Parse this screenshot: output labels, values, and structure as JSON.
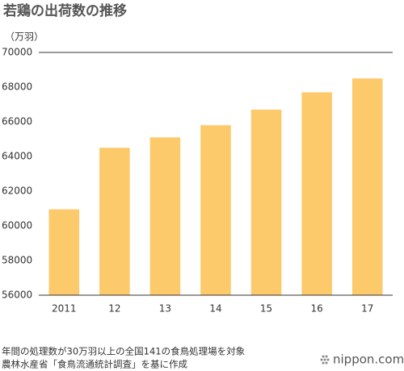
{
  "chart_data": {
    "type": "bar",
    "title": "若鶏の出荷数の推移",
    "unit_label": "（万羽）",
    "categories": [
      "2011",
      "12",
      "13",
      "14",
      "15",
      "16",
      "17"
    ],
    "values": [
      60950,
      64500,
      65100,
      65800,
      66700,
      67700,
      68500
    ],
    "color": "#fcc96b",
    "ylim": [
      56000,
      70000
    ],
    "yticks": [
      56000,
      58000,
      60000,
      62000,
      64000,
      66000,
      68000,
      70000
    ],
    "notes": [
      "年間の処理数が30万羽以上の全国141の食鳥処理場を対象",
      "農林水産省「食鳥流通統計調査」を基に作成"
    ],
    "logo": "nippon.com"
  }
}
